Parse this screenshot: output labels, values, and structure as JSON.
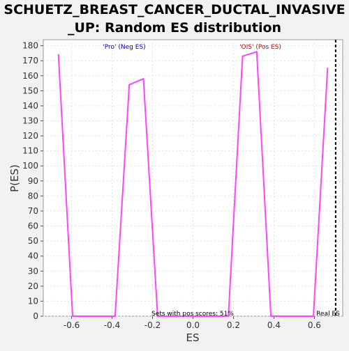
{
  "chart_data": {
    "type": "line",
    "title_lines": [
      "SCHUETZ_BREAST_CANCER_DUCTAL_INVASIVE",
      "_UP: Random ES distribution"
    ],
    "xlabel": "ES",
    "ylabel": "P(ES)",
    "xlim": [
      -0.74,
      0.74
    ],
    "ylim": [
      0,
      184
    ],
    "xticks": [
      -0.6,
      -0.4,
      -0.2,
      0.0,
      0.2,
      0.4,
      0.6
    ],
    "xtick_labels": [
      "-0.6",
      "-0.4",
      "-0.2",
      "0.0",
      "0.2",
      "0.4",
      "0.6"
    ],
    "yticks": [
      0,
      10,
      20,
      30,
      40,
      50,
      60,
      70,
      80,
      90,
      100,
      110,
      120,
      130,
      140,
      150,
      160,
      170,
      180
    ],
    "grid": true,
    "series": [
      {
        "color": "#ff44ff",
        "x": [
          -0.665,
          -0.595,
          -0.385,
          -0.315,
          -0.245,
          -0.175,
          0.175,
          0.245,
          0.315,
          0.385,
          0.595,
          0.665
        ],
        "y": [
          174,
          0,
          0,
          154,
          158,
          0,
          0,
          173,
          176,
          0,
          0,
          165
        ]
      }
    ],
    "real_es": 0.705,
    "annotations": {
      "neg_label": "'Pro' (Neg ES)",
      "pos_label": "'OIS' (Pos ES)",
      "sets_text": "Sets with pos scores: 51%",
      "real_es_label": "Real ES"
    },
    "colors": {
      "neg_label": "#0000cc",
      "pos_label": "#cc0000",
      "real_es_line": "#000000"
    }
  }
}
